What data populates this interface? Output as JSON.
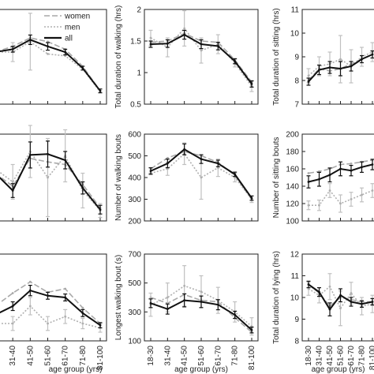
{
  "legend": {
    "entries": [
      {
        "label": "women",
        "color": "#a9a9a9",
        "dash": "7,3"
      },
      {
        "label": "men",
        "color": "#b0b0b0",
        "dash": "2,2"
      },
      {
        "label": "all",
        "color": "#111111",
        "dash": ""
      }
    ]
  },
  "chart_data": [
    {
      "type": "line",
      "ylabel": "",
      "xlabel": "",
      "categories": [
        "18-30",
        "31-40",
        "41-50",
        "51-60",
        "61-70",
        "71-80",
        "81-100"
      ],
      "yticks": [],
      "ylim": [
        0,
        1
      ],
      "series": [
        {
          "name": "women",
          "values": [
            0.55,
            0.61,
            0.7,
            0.66,
            0.58,
            0.4,
            0.14
          ],
          "err": [
            0,
            0,
            0,
            0,
            0,
            0,
            0
          ]
        },
        {
          "name": "men",
          "values": [
            0.55,
            0.55,
            0.66,
            0.53,
            0.51,
            0.37,
            0.13
          ],
          "err": [
            0,
            0.1,
            0.3,
            0,
            0,
            0,
            0
          ]
        },
        {
          "name": "all",
          "values": [
            0.55,
            0.58,
            0.68,
            0.61,
            0.55,
            0.38,
            0.14
          ],
          "err": [
            0.03,
            0.03,
            0.05,
            0.04,
            0.03,
            0.02,
            0.02
          ]
        }
      ]
    },
    {
      "type": "line",
      "ylabel": "Total duration of walking (hrs)",
      "xlabel": "",
      "categories": [
        "18-30",
        "31-40",
        "41-50",
        "51-60",
        "61-70",
        "71-80",
        "81-100"
      ],
      "yticks": [
        0.5,
        1,
        1.5,
        2
      ],
      "ylim": [
        0.5,
        2
      ],
      "series": [
        {
          "name": "women",
          "values": [
            1.48,
            1.5,
            1.62,
            1.5,
            1.48,
            1.2,
            0.85
          ],
          "err": [
            0,
            0,
            0,
            0,
            0,
            0,
            0
          ]
        },
        {
          "name": "men",
          "values": [
            1.55,
            1.4,
            1.7,
            1.35,
            1.45,
            1.15,
            0.78
          ],
          "err": [
            0.12,
            0.15,
            0.28,
            0.2,
            0.15,
            0.06,
            0.08
          ]
        },
        {
          "name": "all",
          "values": [
            1.45,
            1.46,
            1.6,
            1.45,
            1.42,
            1.18,
            0.82
          ],
          "err": [
            0.05,
            0.06,
            0.07,
            0.07,
            0.06,
            0.04,
            0.05
          ]
        }
      ]
    },
    {
      "type": "line",
      "ylabel": "Total duration of sitting (hrs)",
      "xlabel": "",
      "categories": [
        "18-30",
        "31-40",
        "41-50",
        "51-60",
        "61-70",
        "71-80",
        "81-100"
      ],
      "yticks": [
        7,
        8,
        9,
        10,
        11
      ],
      "ylim": [
        7,
        11
      ],
      "series": [
        {
          "name": "women",
          "values": [
            8.0,
            8.5,
            8.4,
            8.5,
            8.7,
            8.9,
            9.1
          ],
          "err": [
            0,
            0,
            0,
            0,
            0,
            0,
            0
          ]
        },
        {
          "name": "men",
          "values": [
            8.2,
            8.6,
            8.7,
            8.9,
            8.6,
            9.0,
            9.2
          ],
          "err": [
            0.3,
            0.4,
            0.5,
            1.0,
            0.7,
            0.4,
            0.4
          ]
        },
        {
          "name": "all",
          "values": [
            7.95,
            8.45,
            8.55,
            8.5,
            8.6,
            8.9,
            9.1
          ],
          "err": [
            0.15,
            0.2,
            0.25,
            0.3,
            0.2,
            0.15,
            0.15
          ]
        }
      ]
    },
    {
      "type": "line",
      "ylabel": "",
      "xlabel": "",
      "categories": [
        "18-30",
        "31-40",
        "41-50",
        "51-60",
        "61-70",
        "71-80",
        "81-100"
      ],
      "yticks": [],
      "ylim": [
        0,
        1
      ],
      "series": [
        {
          "name": "women",
          "values": [
            0.55,
            0.4,
            0.72,
            0.68,
            0.65,
            0.42,
            0.15
          ],
          "err": [
            0,
            0,
            0,
            0,
            0,
            0,
            0
          ]
        },
        {
          "name": "men",
          "values": [
            0.6,
            0.45,
            0.8,
            0.5,
            0.75,
            0.35,
            0.12
          ],
          "err": [
            0.15,
            0.2,
            0.3,
            0.45,
            0.3,
            0.2,
            0.08
          ]
        },
        {
          "name": "all",
          "values": [
            0.55,
            0.35,
            0.76,
            0.77,
            0.7,
            0.38,
            0.13
          ],
          "err": [
            0.06,
            0.08,
            0.15,
            0.15,
            0.1,
            0.07,
            0.05
          ]
        }
      ]
    },
    {
      "type": "line",
      "ylabel": "Number of walking bouts",
      "xlabel": "",
      "categories": [
        "18-30",
        "31-40",
        "41-50",
        "51-60",
        "61-70",
        "71-80",
        "81-100"
      ],
      "yticks": [
        200,
        300,
        400,
        500,
        600
      ],
      "ylim": [
        200,
        600
      ],
      "series": [
        {
          "name": "women",
          "values": [
            440,
            490,
            520,
            500,
            470,
            410,
            300
          ],
          "err": [
            0,
            0,
            0,
            0,
            0,
            0,
            0
          ]
        },
        {
          "name": "men",
          "values": [
            420,
            440,
            510,
            400,
            445,
            400,
            300
          ],
          "err": [
            0.1,
            30,
            50,
            100,
            40,
            20,
            15
          ]
        },
        {
          "name": "all",
          "values": [
            430,
            465,
            530,
            485,
            465,
            415,
            305
          ],
          "err": [
            15,
            20,
            25,
            20,
            15,
            10,
            10
          ]
        }
      ]
    },
    {
      "type": "line",
      "ylabel": "Number of sitting bouts",
      "xlabel": "",
      "categories": [
        "18-30",
        "31-40",
        "41-50",
        "51-60",
        "61-70",
        "71-80",
        "81-100"
      ],
      "yticks": [
        100,
        120,
        140,
        160,
        180,
        200
      ],
      "ylim": [
        100,
        200
      ],
      "series": [
        {
          "name": "women",
          "values": [
            155,
            157,
            160,
            165,
            166,
            168,
            170
          ],
          "err": [
            0,
            0,
            0,
            0,
            0,
            0,
            0
          ]
        },
        {
          "name": "men",
          "values": [
            118,
            118,
            135,
            120,
            125,
            130,
            135
          ],
          "err": [
            5,
            6,
            8,
            10,
            8,
            8,
            8
          ]
        },
        {
          "name": "all",
          "values": [
            145,
            148,
            153,
            160,
            158,
            162,
            165
          ],
          "err": [
            7,
            8,
            8,
            8,
            6,
            6,
            6
          ]
        }
      ]
    },
    {
      "type": "line",
      "ylabel": "",
      "xlabel": "age group (yrs)",
      "categories": [
        "18-30",
        "31-40",
        "41-50",
        "51-60",
        "61-70",
        "71-80",
        "81-100"
      ],
      "yticks": [],
      "ylim": [
        0,
        1
      ],
      "series": [
        {
          "name": "women",
          "values": [
            0.4,
            0.55,
            0.68,
            0.56,
            0.6,
            0.38,
            0.2
          ],
          "err": [
            0,
            0,
            0,
            0,
            0,
            0,
            0
          ]
        },
        {
          "name": "men",
          "values": [
            0.2,
            0.2,
            0.4,
            0.2,
            0.28,
            0.2,
            0.15
          ],
          "err": [
            0.05,
            0.08,
            0.1,
            0.08,
            0.08,
            0.06,
            0.05
          ]
        },
        {
          "name": "all",
          "values": [
            0.3,
            0.4,
            0.58,
            0.52,
            0.5,
            0.32,
            0.18
          ],
          "err": [
            0.04,
            0.05,
            0.06,
            0.04,
            0.04,
            0.04,
            0.03
          ]
        }
      ]
    },
    {
      "type": "line",
      "ylabel": "Longest walking bout (s)",
      "xlabel": "age group (yrs)",
      "categories": [
        "18-30",
        "31-40",
        "41-50",
        "51-60",
        "61-70",
        "71-80",
        "81-100"
      ],
      "yticks": [
        100,
        300,
        500,
        700
      ],
      "ylim": [
        100,
        700
      ],
      "series": [
        {
          "name": "women",
          "values": [
            400,
            360,
            420,
            380,
            370,
            260,
            160
          ],
          "err": [
            0,
            0,
            0,
            0,
            0,
            0,
            0
          ]
        },
        {
          "name": "men",
          "values": [
            350,
            400,
            480,
            440,
            380,
            300,
            200
          ],
          "err": [
            80,
            100,
            140,
            110,
            90,
            70,
            60
          ]
        },
        {
          "name": "all",
          "values": [
            360,
            320,
            380,
            370,
            350,
            280,
            175
          ],
          "err": [
            30,
            35,
            45,
            40,
            35,
            25,
            20
          ]
        }
      ]
    },
    {
      "type": "line",
      "ylabel": "Total duration of lying (hrs)",
      "xlabel": "age group (yrs)",
      "categories": [
        "18-30",
        "31-40",
        "41-50",
        "51-60",
        "61-70",
        "71-80",
        "81-100"
      ],
      "yticks": [
        8,
        9,
        10,
        11,
        12
      ],
      "ylim": [
        8,
        12
      ],
      "series": [
        {
          "name": "women",
          "values": [
            10.6,
            10.2,
            9.6,
            10.0,
            9.9,
            9.8,
            9.8
          ],
          "err": [
            0,
            0,
            0,
            0,
            0,
            0,
            0
          ]
        },
        {
          "name": "men",
          "values": [
            10.4,
            10.1,
            10.5,
            9.5,
            10.2,
            9.6,
            9.7
          ],
          "err": [
            0.3,
            0.35,
            0.6,
            0.8,
            0.5,
            0.4,
            0.4
          ]
        },
        {
          "name": "all",
          "values": [
            10.6,
            10.25,
            9.45,
            10.1,
            9.8,
            9.7,
            9.8
          ],
          "err": [
            0.15,
            0.2,
            0.3,
            0.3,
            0.2,
            0.15,
            0.15
          ]
        }
      ]
    }
  ]
}
